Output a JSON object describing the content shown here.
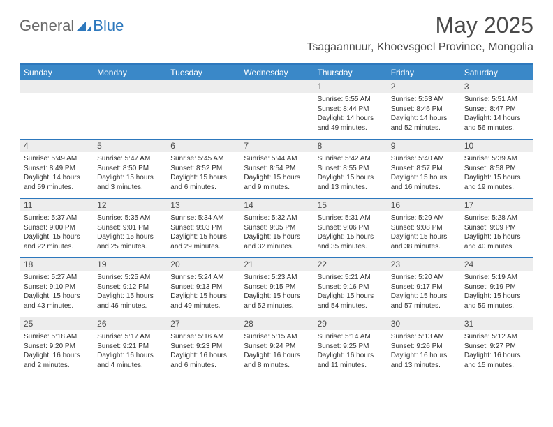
{
  "logo": {
    "general": "General",
    "blue": "Blue"
  },
  "title": "May 2025",
  "location": "Tsagaannuur, Khoevsgoel Province, Mongolia",
  "weekdays": [
    "Sunday",
    "Monday",
    "Tuesday",
    "Wednesday",
    "Thursday",
    "Friday",
    "Saturday"
  ],
  "colors": {
    "header_bg": "#3a88c8",
    "header_border": "#2d78bd",
    "daynum_bg": "#ededed",
    "text": "#4a4a4a"
  },
  "weeks": [
    [
      {
        "n": "",
        "sr": "",
        "ss": "",
        "dl": ""
      },
      {
        "n": "",
        "sr": "",
        "ss": "",
        "dl": ""
      },
      {
        "n": "",
        "sr": "",
        "ss": "",
        "dl": ""
      },
      {
        "n": "",
        "sr": "",
        "ss": "",
        "dl": ""
      },
      {
        "n": "1",
        "sr": "Sunrise: 5:55 AM",
        "ss": "Sunset: 8:44 PM",
        "dl": "Daylight: 14 hours and 49 minutes."
      },
      {
        "n": "2",
        "sr": "Sunrise: 5:53 AM",
        "ss": "Sunset: 8:46 PM",
        "dl": "Daylight: 14 hours and 52 minutes."
      },
      {
        "n": "3",
        "sr": "Sunrise: 5:51 AM",
        "ss": "Sunset: 8:47 PM",
        "dl": "Daylight: 14 hours and 56 minutes."
      }
    ],
    [
      {
        "n": "4",
        "sr": "Sunrise: 5:49 AM",
        "ss": "Sunset: 8:49 PM",
        "dl": "Daylight: 14 hours and 59 minutes."
      },
      {
        "n": "5",
        "sr": "Sunrise: 5:47 AM",
        "ss": "Sunset: 8:50 PM",
        "dl": "Daylight: 15 hours and 3 minutes."
      },
      {
        "n": "6",
        "sr": "Sunrise: 5:45 AM",
        "ss": "Sunset: 8:52 PM",
        "dl": "Daylight: 15 hours and 6 minutes."
      },
      {
        "n": "7",
        "sr": "Sunrise: 5:44 AM",
        "ss": "Sunset: 8:54 PM",
        "dl": "Daylight: 15 hours and 9 minutes."
      },
      {
        "n": "8",
        "sr": "Sunrise: 5:42 AM",
        "ss": "Sunset: 8:55 PM",
        "dl": "Daylight: 15 hours and 13 minutes."
      },
      {
        "n": "9",
        "sr": "Sunrise: 5:40 AM",
        "ss": "Sunset: 8:57 PM",
        "dl": "Daylight: 15 hours and 16 minutes."
      },
      {
        "n": "10",
        "sr": "Sunrise: 5:39 AM",
        "ss": "Sunset: 8:58 PM",
        "dl": "Daylight: 15 hours and 19 minutes."
      }
    ],
    [
      {
        "n": "11",
        "sr": "Sunrise: 5:37 AM",
        "ss": "Sunset: 9:00 PM",
        "dl": "Daylight: 15 hours and 22 minutes."
      },
      {
        "n": "12",
        "sr": "Sunrise: 5:35 AM",
        "ss": "Sunset: 9:01 PM",
        "dl": "Daylight: 15 hours and 25 minutes."
      },
      {
        "n": "13",
        "sr": "Sunrise: 5:34 AM",
        "ss": "Sunset: 9:03 PM",
        "dl": "Daylight: 15 hours and 29 minutes."
      },
      {
        "n": "14",
        "sr": "Sunrise: 5:32 AM",
        "ss": "Sunset: 9:05 PM",
        "dl": "Daylight: 15 hours and 32 minutes."
      },
      {
        "n": "15",
        "sr": "Sunrise: 5:31 AM",
        "ss": "Sunset: 9:06 PM",
        "dl": "Daylight: 15 hours and 35 minutes."
      },
      {
        "n": "16",
        "sr": "Sunrise: 5:29 AM",
        "ss": "Sunset: 9:08 PM",
        "dl": "Daylight: 15 hours and 38 minutes."
      },
      {
        "n": "17",
        "sr": "Sunrise: 5:28 AM",
        "ss": "Sunset: 9:09 PM",
        "dl": "Daylight: 15 hours and 40 minutes."
      }
    ],
    [
      {
        "n": "18",
        "sr": "Sunrise: 5:27 AM",
        "ss": "Sunset: 9:10 PM",
        "dl": "Daylight: 15 hours and 43 minutes."
      },
      {
        "n": "19",
        "sr": "Sunrise: 5:25 AM",
        "ss": "Sunset: 9:12 PM",
        "dl": "Daylight: 15 hours and 46 minutes."
      },
      {
        "n": "20",
        "sr": "Sunrise: 5:24 AM",
        "ss": "Sunset: 9:13 PM",
        "dl": "Daylight: 15 hours and 49 minutes."
      },
      {
        "n": "21",
        "sr": "Sunrise: 5:23 AM",
        "ss": "Sunset: 9:15 PM",
        "dl": "Daylight: 15 hours and 52 minutes."
      },
      {
        "n": "22",
        "sr": "Sunrise: 5:21 AM",
        "ss": "Sunset: 9:16 PM",
        "dl": "Daylight: 15 hours and 54 minutes."
      },
      {
        "n": "23",
        "sr": "Sunrise: 5:20 AM",
        "ss": "Sunset: 9:17 PM",
        "dl": "Daylight: 15 hours and 57 minutes."
      },
      {
        "n": "24",
        "sr": "Sunrise: 5:19 AM",
        "ss": "Sunset: 9:19 PM",
        "dl": "Daylight: 15 hours and 59 minutes."
      }
    ],
    [
      {
        "n": "25",
        "sr": "Sunrise: 5:18 AM",
        "ss": "Sunset: 9:20 PM",
        "dl": "Daylight: 16 hours and 2 minutes."
      },
      {
        "n": "26",
        "sr": "Sunrise: 5:17 AM",
        "ss": "Sunset: 9:21 PM",
        "dl": "Daylight: 16 hours and 4 minutes."
      },
      {
        "n": "27",
        "sr": "Sunrise: 5:16 AM",
        "ss": "Sunset: 9:23 PM",
        "dl": "Daylight: 16 hours and 6 minutes."
      },
      {
        "n": "28",
        "sr": "Sunrise: 5:15 AM",
        "ss": "Sunset: 9:24 PM",
        "dl": "Daylight: 16 hours and 8 minutes."
      },
      {
        "n": "29",
        "sr": "Sunrise: 5:14 AM",
        "ss": "Sunset: 9:25 PM",
        "dl": "Daylight: 16 hours and 11 minutes."
      },
      {
        "n": "30",
        "sr": "Sunrise: 5:13 AM",
        "ss": "Sunset: 9:26 PM",
        "dl": "Daylight: 16 hours and 13 minutes."
      },
      {
        "n": "31",
        "sr": "Sunrise: 5:12 AM",
        "ss": "Sunset: 9:27 PM",
        "dl": "Daylight: 16 hours and 15 minutes."
      }
    ]
  ]
}
